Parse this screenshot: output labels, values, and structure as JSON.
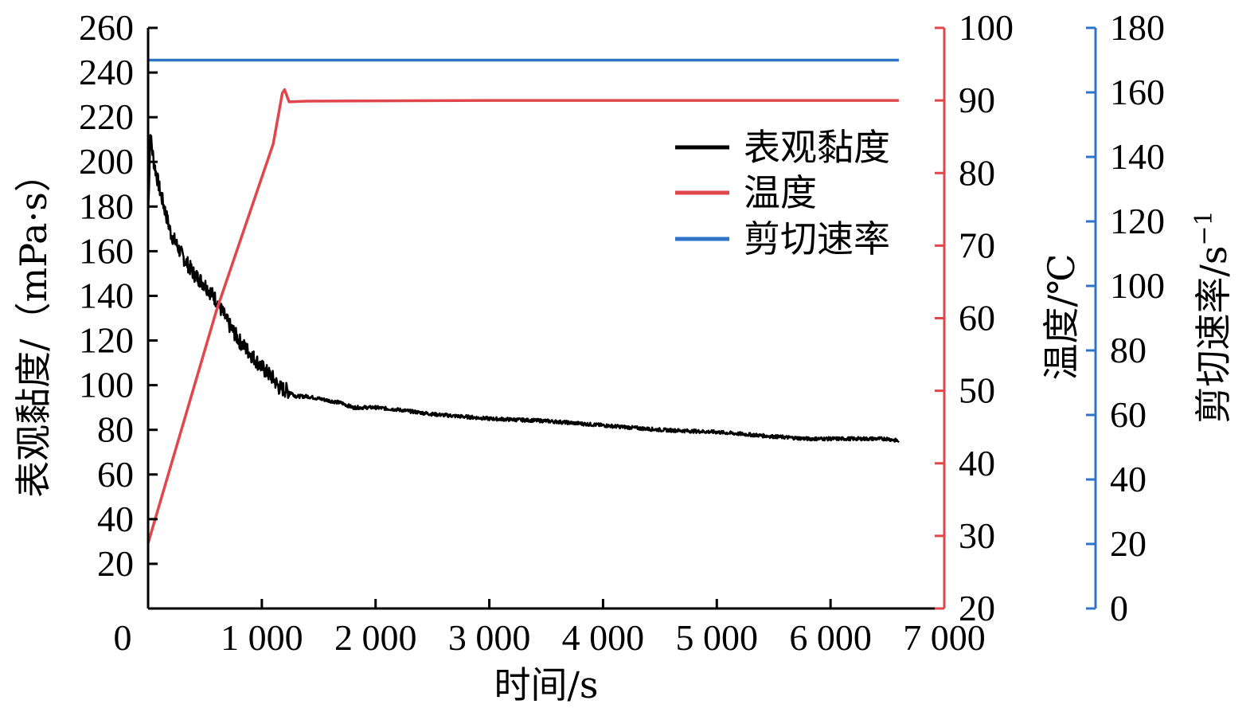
{
  "chart_data": {
    "type": "line",
    "xlabel": "时间/s",
    "x_ticks": [
      "0",
      "1 000",
      "2 000",
      "3 000",
      "4 000",
      "5 000",
      "6 000",
      "7 000"
    ],
    "xlim": [
      0,
      7000
    ],
    "axes": {
      "viscosity": {
        "label": "表观黏度/（mPa·s）",
        "ylim": [
          0,
          260
        ],
        "ticks": [
          "20",
          "40",
          "60",
          "80",
          "100",
          "120",
          "140",
          "160",
          "180",
          "200",
          "220",
          "240",
          "260"
        ],
        "color": "#000000"
      },
      "temperature": {
        "label": "温度/℃",
        "ylim": [
          20,
          100
        ],
        "ticks": [
          "20",
          "30",
          "40",
          "50",
          "60",
          "70",
          "80",
          "90",
          "100"
        ],
        "color": "#e0474c"
      },
      "shear": {
        "label_main": "剪切速率/s",
        "label_sup": "−1",
        "ylim": [
          0,
          180
        ],
        "ticks": [
          "0",
          "20",
          "40",
          "60",
          "80",
          "100",
          "120",
          "140",
          "160",
          "180"
        ],
        "color": "#2f74c9"
      }
    },
    "series": [
      {
        "name": "表观黏度",
        "axis": "viscosity",
        "color": "#000000",
        "noise": true,
        "x": [
          0,
          20,
          50,
          100,
          150,
          200,
          300,
          400,
          500,
          600,
          700,
          800,
          900,
          1000,
          1100,
          1150,
          1200,
          1250,
          1300,
          1400,
          1500,
          1700,
          1800,
          2000,
          2200,
          2500,
          3000,
          3500,
          4000,
          4500,
          5000,
          5500,
          5800,
          6000,
          6300,
          6500,
          6600
        ],
        "y": [
          175,
          212,
          200,
          188,
          178,
          168,
          158,
          150,
          145,
          138,
          128,
          120,
          114,
          108,
          103,
          99,
          98,
          97,
          95,
          95,
          94,
          92,
          90,
          90,
          89,
          87,
          85,
          84,
          82,
          80,
          79,
          77,
          76,
          76,
          76,
          76,
          75
        ]
      },
      {
        "name": "温度",
        "axis": "temperature",
        "color": "#e0474c",
        "noise": false,
        "x": [
          0,
          600,
          1100,
          1180,
          1200,
          1240,
          1400,
          3000,
          5000,
          6600
        ],
        "y": [
          29,
          61,
          84,
          91,
          91.5,
          89.8,
          89.9,
          90,
          90,
          90
        ]
      },
      {
        "name": "剪切速率",
        "axis": "shear",
        "color": "#2f74c9",
        "noise": false,
        "x": [
          0,
          6600
        ],
        "y": [
          170,
          170
        ]
      }
    ],
    "legend_position": "upper-right inside plot",
    "grid": false
  }
}
